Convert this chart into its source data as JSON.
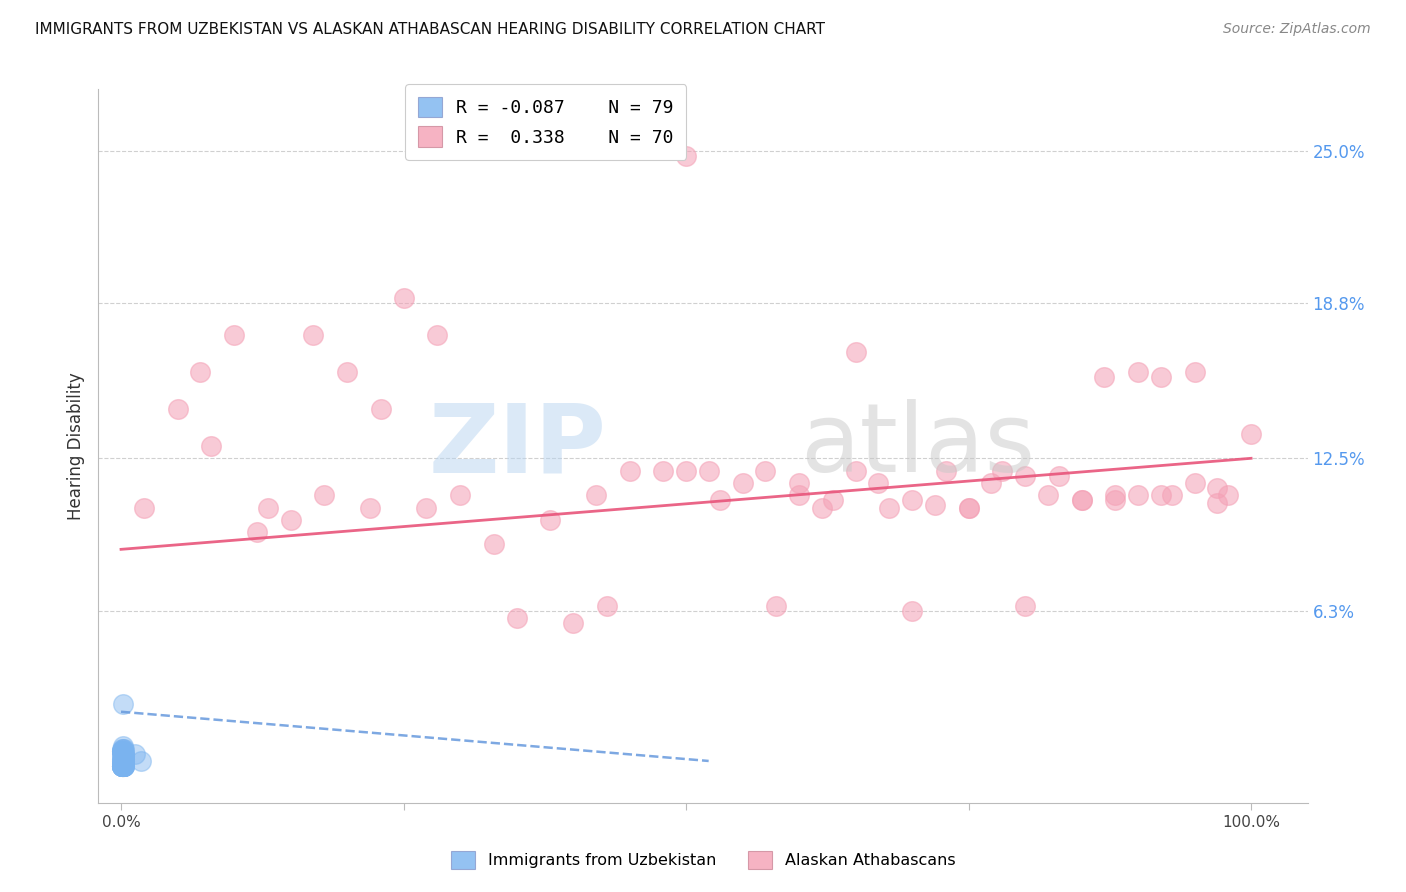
{
  "title": "IMMIGRANTS FROM UZBEKISTAN VS ALASKAN ATHABASCAN HEARING DISABILITY CORRELATION CHART",
  "source": "Source: ZipAtlas.com",
  "ylabel": "Hearing Disability",
  "xlim": [
    -0.02,
    1.05
  ],
  "ylim": [
    -0.015,
    0.275
  ],
  "xtick_positions": [
    0.0,
    0.25,
    0.5,
    0.75,
    1.0
  ],
  "xtick_labels": [
    "0.0%",
    "",
    "",
    "",
    "100.0%"
  ],
  "ytick_values": [
    0.063,
    0.125,
    0.188,
    0.25
  ],
  "ytick_labels": [
    "6.3%",
    "12.5%",
    "18.8%",
    "25.0%"
  ],
  "blue_color": "#7ab3ef",
  "pink_color": "#f4a0b5",
  "line_blue_color": "#6699dd",
  "line_pink_color": "#e8547a",
  "grid_color": "#d0d0d0",
  "background_color": "#ffffff",
  "blue_scatter_x": [
    0.001,
    0.002,
    0.001,
    0.003,
    0.002,
    0.001,
    0.002,
    0.003,
    0.001,
    0.002,
    0.003,
    0.002,
    0.001,
    0.003,
    0.002,
    0.001,
    0.002,
    0.003,
    0.001,
    0.002,
    0.003,
    0.001,
    0.002,
    0.003,
    0.002,
    0.001,
    0.003,
    0.002,
    0.001,
    0.002,
    0.003,
    0.002,
    0.001,
    0.003,
    0.002,
    0.001,
    0.002,
    0.003,
    0.001,
    0.002,
    0.003,
    0.002,
    0.001,
    0.002,
    0.003,
    0.001,
    0.002,
    0.003,
    0.002,
    0.001,
    0.003,
    0.002,
    0.001,
    0.003,
    0.001,
    0.002,
    0.003,
    0.002,
    0.001,
    0.003,
    0.002,
    0.001,
    0.002,
    0.003,
    0.002,
    0.001,
    0.002,
    0.003,
    0.002,
    0.001,
    0.012,
    0.018,
    0.002,
    0.003,
    0.001,
    0.002,
    0.003,
    0.001,
    0.002
  ],
  "blue_scatter_y": [
    0.0,
    0.0,
    0.005,
    0.0,
    0.008,
    0.0,
    0.003,
    0.0,
    0.006,
    0.0,
    0.002,
    0.0,
    0.007,
    0.001,
    0.004,
    0.0,
    0.005,
    0.0,
    0.002,
    0.003,
    0.0,
    0.006,
    0.0,
    0.004,
    0.001,
    0.0,
    0.005,
    0.002,
    0.0,
    0.007,
    0.001,
    0.003,
    0.0,
    0.006,
    0.002,
    0.0,
    0.005,
    0.001,
    0.004,
    0.0,
    0.003,
    0.0,
    0.006,
    0.001,
    0.004,
    0.0,
    0.005,
    0.002,
    0.0,
    0.006,
    0.001,
    0.004,
    0.0,
    0.003,
    0.0,
    0.005,
    0.002,
    0.0,
    0.006,
    0.001,
    0.004,
    0.0,
    0.003,
    0.0,
    0.005,
    0.002,
    0.001,
    0.004,
    0.0,
    0.003,
    0.005,
    0.002,
    0.0,
    0.007,
    0.003,
    0.0,
    0.005,
    0.001,
    0.025
  ],
  "pink_scatter_x": [
    0.02,
    0.07,
    0.1,
    0.12,
    0.13,
    0.15,
    0.17,
    0.2,
    0.22,
    0.25,
    0.27,
    0.28,
    0.3,
    0.35,
    0.38,
    0.4,
    0.42,
    0.45,
    0.48,
    0.5,
    0.53,
    0.55,
    0.58,
    0.6,
    0.62,
    0.63,
    0.65,
    0.67,
    0.68,
    0.7,
    0.72,
    0.73,
    0.75,
    0.77,
    0.78,
    0.8,
    0.82,
    0.83,
    0.85,
    0.87,
    0.88,
    0.9,
    0.92,
    0.93,
    0.95,
    0.97,
    0.98,
    1.0,
    0.05,
    0.08,
    0.18,
    0.23,
    0.33,
    0.43,
    0.52,
    0.57,
    0.7,
    0.75,
    0.8,
    0.85,
    0.9,
    0.95,
    0.97,
    0.6,
    0.65,
    0.88,
    0.92,
    0.5
  ],
  "pink_scatter_y": [
    0.105,
    0.16,
    0.175,
    0.095,
    0.105,
    0.1,
    0.175,
    0.16,
    0.105,
    0.19,
    0.105,
    0.175,
    0.11,
    0.06,
    0.1,
    0.058,
    0.11,
    0.12,
    0.12,
    0.12,
    0.108,
    0.115,
    0.065,
    0.11,
    0.105,
    0.108,
    0.12,
    0.115,
    0.105,
    0.108,
    0.106,
    0.12,
    0.105,
    0.115,
    0.12,
    0.065,
    0.11,
    0.118,
    0.108,
    0.158,
    0.11,
    0.11,
    0.158,
    0.11,
    0.16,
    0.113,
    0.11,
    0.135,
    0.145,
    0.13,
    0.11,
    0.145,
    0.09,
    0.065,
    0.12,
    0.12,
    0.063,
    0.105,
    0.118,
    0.108,
    0.16,
    0.115,
    0.107,
    0.115,
    0.168,
    0.108,
    0.11,
    0.248
  ],
  "blue_trendline_x": [
    0.0,
    0.52
  ],
  "blue_trendline_y": [
    0.022,
    0.002
  ],
  "pink_trendline_x": [
    0.0,
    1.0
  ],
  "pink_trendline_y": [
    0.088,
    0.125
  ]
}
